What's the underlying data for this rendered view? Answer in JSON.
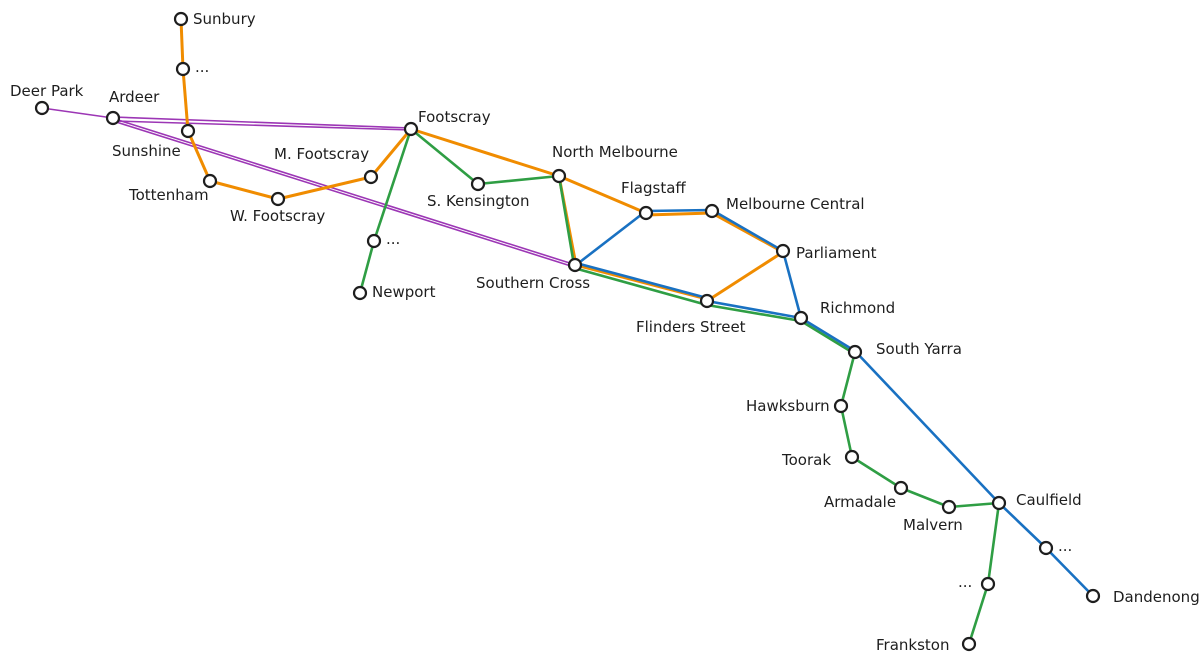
{
  "colors": {
    "orange": "#f08c00",
    "green": "#2f9e44",
    "blue": "#1971c2",
    "purple": "#9c36b5",
    "ink": "#1e1e1e"
  },
  "stations": {
    "sunbury": "Sunbury",
    "ell_sunbury": "...",
    "deer_park": "Deer Park",
    "ardeer": "Ardeer",
    "sunshine": "Sunshine",
    "tottenham": "Tottenham",
    "w_footscray": "W. Footscray",
    "m_footscray": "M. Footscray",
    "footscray": "Footscray",
    "s_kensington": "S. Kensington",
    "north_melbourne": "North Melbourne",
    "ell_newport": "...",
    "newport": "Newport",
    "flagstaff": "Flagstaff",
    "melbourne_central": "Melbourne Central",
    "parliament": "Parliament",
    "southern_cross": "Southern Cross",
    "flinders_street": "Flinders Street",
    "richmond": "Richmond",
    "south_yarra": "South Yarra",
    "hawksburn": "Hawksburn",
    "toorak": "Toorak",
    "armadale": "Armadale",
    "malvern": "Malvern",
    "caulfield": "Caulfield",
    "ell_dandenong": "...",
    "dandenong": "Dandenong",
    "ell_frankston": "...",
    "frankston": "Frankston"
  }
}
